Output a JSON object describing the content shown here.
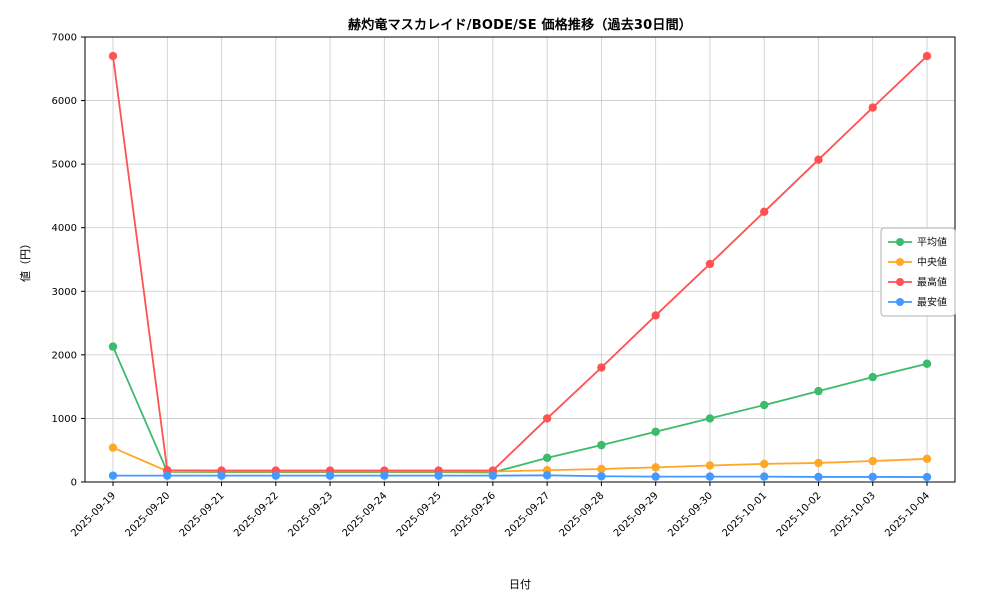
{
  "chart_data": {
    "type": "line",
    "title": "赫灼竜マスカレイド/BODE/SE 価格推移（過去30日間）",
    "xlabel": "日付",
    "ylabel": "値（円）",
    "ylim": [
      0,
      7000
    ],
    "yticks": [
      0,
      1000,
      2000,
      3000,
      4000,
      5000,
      6000,
      7000
    ],
    "grid": true,
    "legend_position": "right",
    "categories": [
      "2025-09-19",
      "2025-09-20",
      "2025-09-21",
      "2025-09-22",
      "2025-09-23",
      "2025-09-24",
      "2025-09-25",
      "2025-09-26",
      "2025-09-27",
      "2025-09-28",
      "2025-09-29",
      "2025-09-30",
      "2025-10-01",
      "2025-10-02",
      "2025-10-03",
      "2025-10-04"
    ],
    "series": [
      {
        "name": "平均値",
        "color": "#3cbb6c",
        "values": [
          2130,
          160,
          155,
          155,
          155,
          155,
          155,
          150,
          380,
          580,
          790,
          1000,
          1210,
          1430,
          1650,
          1860
        ]
      },
      {
        "name": "中央値",
        "color": "#ffa726",
        "values": [
          540,
          170,
          165,
          165,
          165,
          165,
          165,
          165,
          185,
          205,
          230,
          260,
          285,
          300,
          330,
          365
        ]
      },
      {
        "name": "最高値",
        "color": "#ff5252",
        "values": [
          6700,
          185,
          180,
          180,
          180,
          180,
          180,
          180,
          1000,
          1800,
          2620,
          3430,
          4250,
          5070,
          5890,
          6700
        ]
      },
      {
        "name": "最安値",
        "color": "#4499ff",
        "values": [
          100,
          100,
          100,
          100,
          100,
          100,
          100,
          100,
          105,
          90,
          85,
          85,
          85,
          80,
          80,
          78
        ]
      }
    ]
  }
}
